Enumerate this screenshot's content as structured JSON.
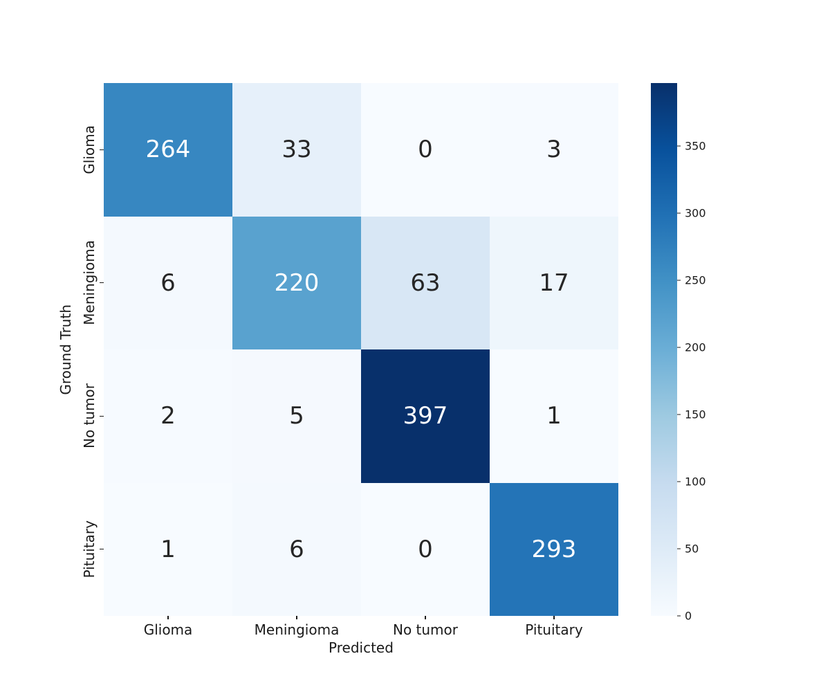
{
  "chart_data": {
    "type": "heatmap",
    "title": "",
    "xlabel": "Predicted",
    "ylabel": "Ground Truth",
    "x_categories": [
      "Glioma",
      "Meningioma",
      "No tumor",
      "Pituitary"
    ],
    "y_categories": [
      "Glioma",
      "Meningioma",
      "No tumor",
      "Pituitary"
    ],
    "matrix": [
      [
        264,
        33,
        0,
        3
      ],
      [
        6,
        220,
        63,
        17
      ],
      [
        2,
        5,
        397,
        1
      ],
      [
        1,
        6,
        0,
        293
      ]
    ],
    "vmin": 0,
    "vmax": 397,
    "colormap": "Blues",
    "legend_position": "right-colorbar",
    "grid": false,
    "colorbar_ticks": [
      0,
      50,
      100,
      150,
      200,
      250,
      300,
      350
    ],
    "colormap_stops": [
      "#f7fbff",
      "#deebf7",
      "#c6dbef",
      "#9ecae1",
      "#6baed6",
      "#4292c6",
      "#2171b5",
      "#08519c",
      "#08306b"
    ],
    "annotation_colors": {
      "light_text": "#ffffff",
      "dark_text": "#262626"
    },
    "cells": [
      {
        "v": "264",
        "bg": "#3787c1",
        "fg": "#ffffff"
      },
      {
        "v": "33",
        "bg": "#e6f0fa",
        "fg": "#262626"
      },
      {
        "v": "0",
        "bg": "#f7fbff",
        "fg": "#262626"
      },
      {
        "v": "3",
        "bg": "#f6faff",
        "fg": "#262626"
      },
      {
        "v": "6",
        "bg": "#f4f9fe",
        "fg": "#262626"
      },
      {
        "v": "220",
        "bg": "#59a2cf",
        "fg": "#ffffff"
      },
      {
        "v": "63",
        "bg": "#d8e7f5",
        "fg": "#262626"
      },
      {
        "v": "17",
        "bg": "#eef6fc",
        "fg": "#262626"
      },
      {
        "v": "2",
        "bg": "#f6faff",
        "fg": "#262626"
      },
      {
        "v": "5",
        "bg": "#f5f9fe",
        "fg": "#262626"
      },
      {
        "v": "397",
        "bg": "#08306b",
        "fg": "#ffffff"
      },
      {
        "v": "1",
        "bg": "#f7fbff",
        "fg": "#262626"
      },
      {
        "v": "1",
        "bg": "#f7fbff",
        "fg": "#262626"
      },
      {
        "v": "6",
        "bg": "#f4f9fe",
        "fg": "#262626"
      },
      {
        "v": "0",
        "bg": "#f7fbff",
        "fg": "#262626"
      },
      {
        "v": "293",
        "bg": "#2474b7",
        "fg": "#ffffff"
      }
    ]
  }
}
